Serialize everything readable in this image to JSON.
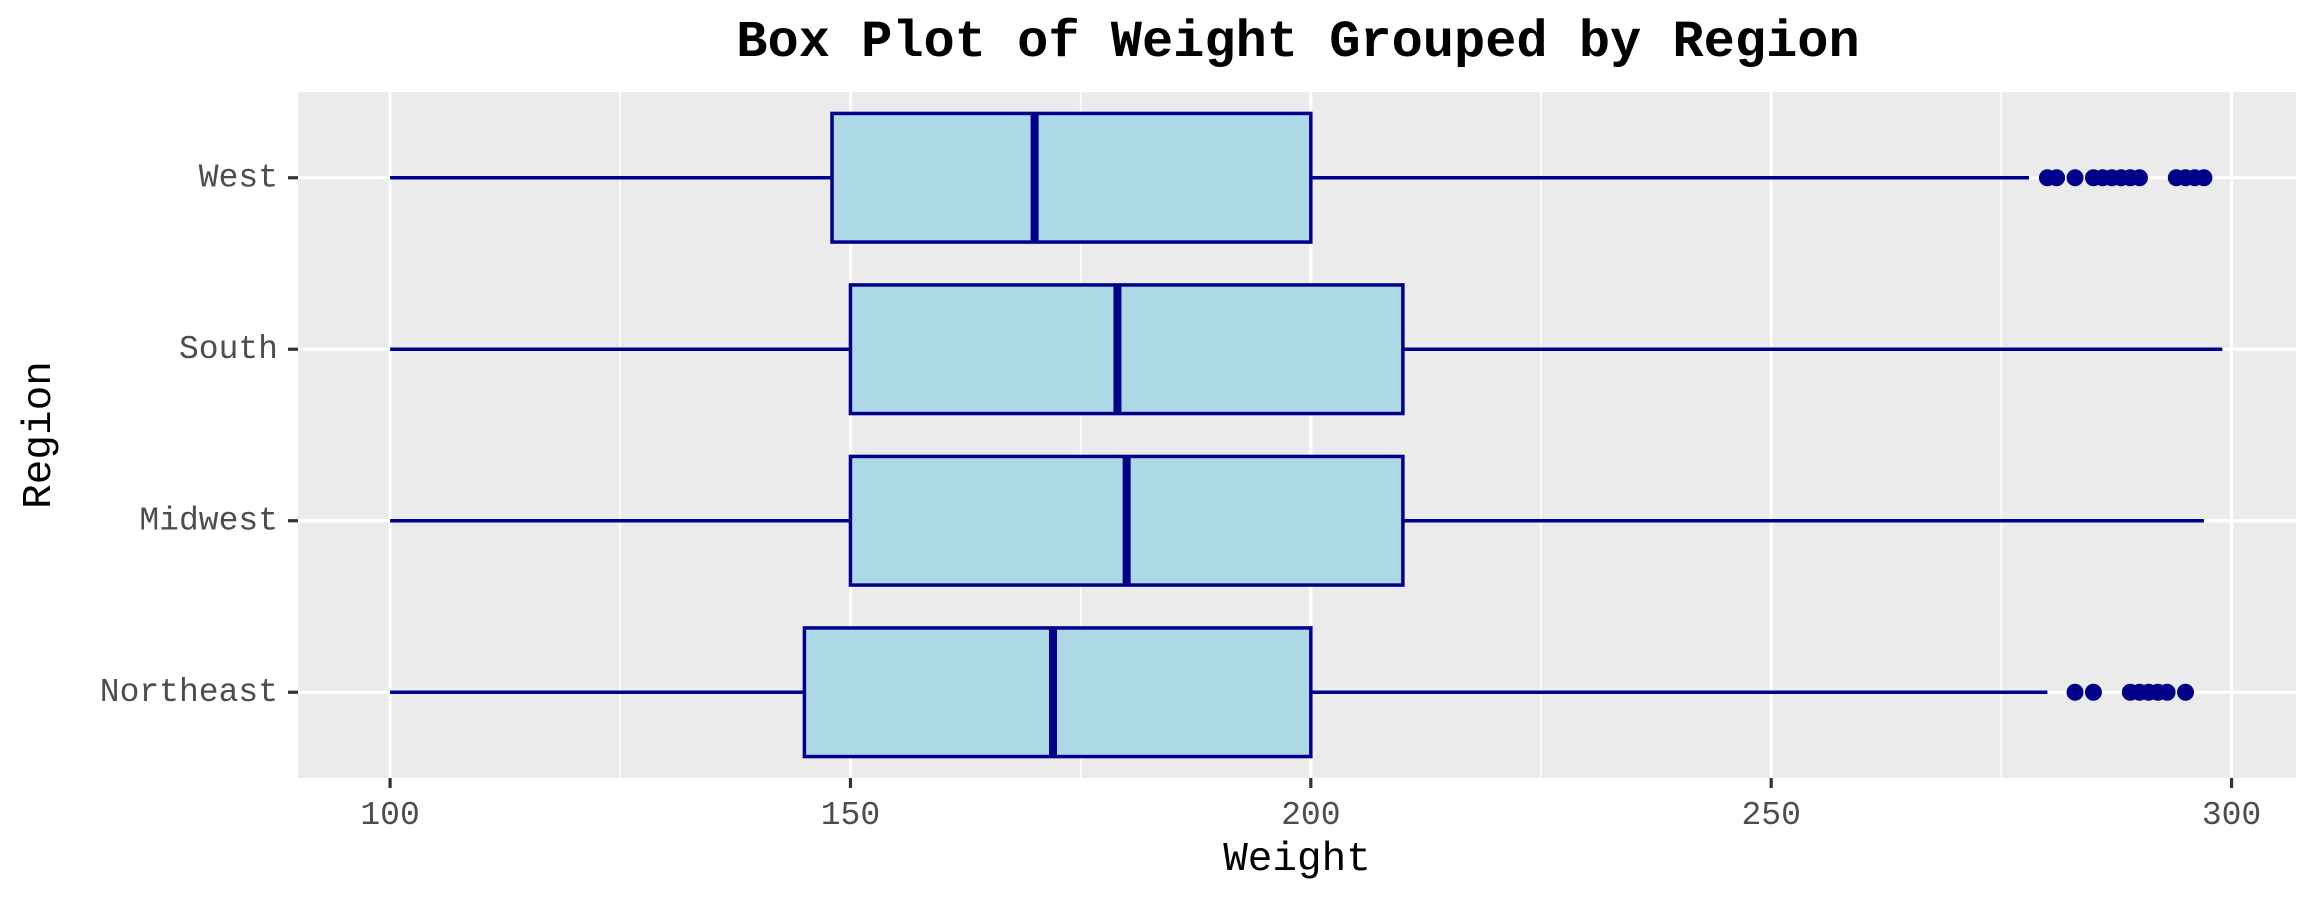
{
  "chart_data": {
    "type": "boxplot",
    "orientation": "horizontal",
    "title": "Box Plot of Weight Grouped by Region",
    "xlabel": "Weight",
    "ylabel": "Region",
    "xlim": [
      90,
      307
    ],
    "x_ticks": [
      100,
      150,
      200,
      250,
      300
    ],
    "x_tick_labels": [
      "100",
      "150",
      "200",
      "250",
      "300"
    ],
    "grid": true,
    "legend": "none",
    "colors": {
      "panel_background": "#ebebeb",
      "grid": "#ffffff",
      "box_fill": "#add8e6",
      "box_stroke": "#00008b",
      "outlier": "#00008b"
    },
    "categories": [
      "West",
      "South",
      "Midwest",
      "Northeast"
    ],
    "boxes": [
      {
        "category": "West",
        "whisker_low": 100,
        "q1": 148,
        "median": 170,
        "q3": 200,
        "whisker_high": 278,
        "outliers": [
          280,
          281,
          283,
          285,
          286,
          287,
          288,
          289,
          290,
          294,
          295,
          296,
          297
        ]
      },
      {
        "category": "South",
        "whisker_low": 100,
        "q1": 150,
        "median": 179,
        "q3": 210,
        "whisker_high": 299,
        "outliers": []
      },
      {
        "category": "Midwest",
        "whisker_low": 100,
        "q1": 150,
        "median": 180,
        "q3": 210,
        "whisker_high": 297,
        "outliers": []
      },
      {
        "category": "Northeast",
        "whisker_low": 100,
        "q1": 145,
        "median": 172,
        "q3": 200,
        "whisker_high": 280,
        "outliers": [
          283,
          285,
          289,
          290,
          291,
          292,
          293,
          295
        ]
      }
    ]
  }
}
